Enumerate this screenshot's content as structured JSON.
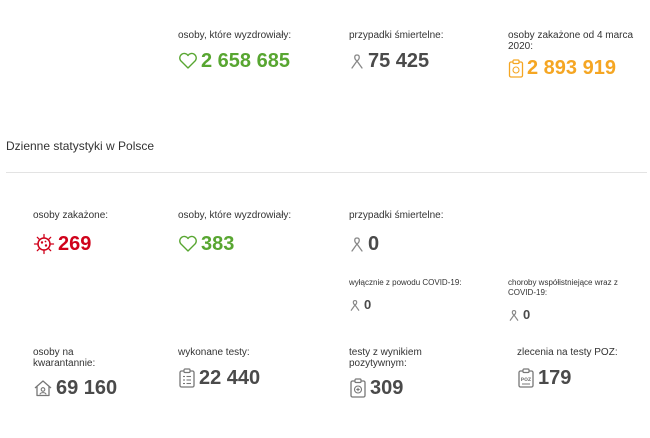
{
  "totals": {
    "recovered": {
      "label": "osoby, które wyzdrowiały:",
      "value": "2 658 685",
      "icon": "heart-icon",
      "color": "#58a631"
    },
    "deaths": {
      "label": "przypadki śmiertelne:",
      "value": "75 425",
      "icon": "ribbon-icon",
      "color": "#4a4a4a"
    },
    "infected_since": {
      "label": "osoby zakażone od 4 marca 2020:",
      "value": "2 893 919",
      "icon": "clipboard-icon",
      "color": "#f5a623"
    }
  },
  "daily": {
    "title": "Dzienne statystyki w Polsce",
    "infected": {
      "label": "osoby zakażone:",
      "value": "269",
      "icon": "virus-icon",
      "color": "#d0021b"
    },
    "recovered": {
      "label": "osoby, które wyzdrowiały:",
      "value": "383",
      "icon": "heart-icon",
      "color": "#58a631"
    },
    "deaths": {
      "label": "przypadki śmiertelne:",
      "value": "0",
      "icon": "ribbon-icon",
      "color": "#4a4a4a"
    },
    "deaths_covid_only": {
      "label": "wyłącznie z powodu COVID-19:",
      "value": "0",
      "icon": "ribbon-icon"
    },
    "deaths_comorbid": {
      "label": "choroby współistniejące wraz z COVID-19:",
      "value": "0",
      "icon": "ribbon-icon"
    },
    "quarantine": {
      "label": "osoby na kwarantannie:",
      "value": "69 160",
      "icon": "house-icon"
    },
    "tests_done": {
      "label": "wykonane testy:",
      "value": "22 440",
      "icon": "clipboard-list-icon"
    },
    "positive_tests": {
      "label": "testy z wynikiem pozytywnym:",
      "value": "309",
      "icon": "clipboard-plus-icon"
    },
    "poz_orders": {
      "label": "zlecenia na testy POZ:",
      "value": "179",
      "icon": "clipboard-poz-icon"
    }
  }
}
